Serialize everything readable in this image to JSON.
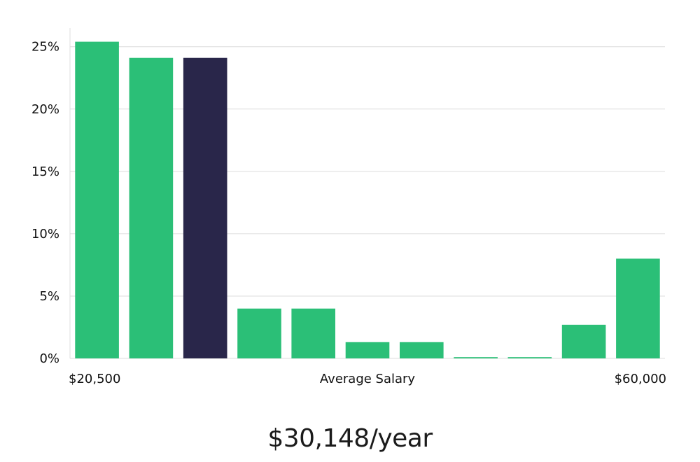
{
  "chart_data": {
    "type": "bar",
    "values": [
      25.4,
      24.1,
      24.1,
      4.0,
      4.0,
      1.3,
      1.3,
      0.1,
      0.1,
      2.7,
      8.0
    ],
    "highlight_index": 2,
    "ylim": [
      0,
      26.5
    ],
    "yticks": [
      0,
      5,
      10,
      15,
      20,
      25
    ],
    "ytick_labels": [
      "0%",
      "5%",
      "10%",
      "15%",
      "20%",
      "25%"
    ],
    "x_min_label": "$20,500",
    "xlabel": "Average Salary",
    "x_max_label": "$60,000",
    "grid": true,
    "colors": {
      "bar": "#2bbf77",
      "highlight": "#29264a",
      "grid": "#dcdcdc"
    }
  },
  "headline": "$30,148/year"
}
